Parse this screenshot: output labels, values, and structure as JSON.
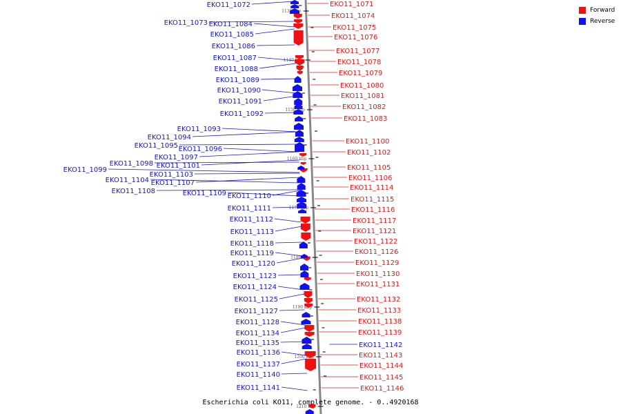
{
  "caption": "Escherichia coli KO11, complete genome. - 0..4920168",
  "legend": [
    {
      "label": "Forward",
      "color": "#ee1111"
    },
    {
      "label": "Reverse",
      "color": "#1111ee"
    }
  ],
  "colors": {
    "forward": "#ee1111",
    "reverse": "#1111ee",
    "backbone": "#888888",
    "tick": "#000000"
  },
  "ticks": [
    "1130 kbp",
    "1140 kbp",
    "1150 kbp",
    "1160 kbp",
    "1170 kbp",
    "1180 kbp",
    "1190 kbp",
    "1200 kbp",
    "1210 kbp"
  ],
  "reverse_genes": [
    "EKO11_1072",
    "EKO11_1073",
    "EKO11_1084",
    "EKO11_1085",
    "EKO11_1086",
    "EKO11_1087",
    "EKO11_1088",
    "EKO11_1089",
    "EKO11_1090",
    "EKO11_1091",
    "EKO11_1092",
    "EKO11_1093",
    "EKO11_1094",
    "EKO11_1095",
    "EKO11_1096",
    "EKO11_1097",
    "EKO11_1098",
    "EKO11_1099",
    "EKO11_1101",
    "EKO11_1103",
    "EKO11_1104",
    "EKO11_1107",
    "EKO11_1108",
    "EKO11_1109",
    "EKO11_1110",
    "EKO11_1111",
    "EKO11_1112",
    "EKO11_1113",
    "EKO11_1118",
    "EKO11_1119",
    "EKO11_1120",
    "EKO11_1123",
    "EKO11_1124",
    "EKO11_1125",
    "EKO11_1127",
    "EKO11_1128",
    "EKO11_1134",
    "EKO11_1135",
    "EKO11_1136",
    "EKO11_1137",
    "EKO11_1140",
    "EKO11_1141",
    "EKO11_1142"
  ],
  "forward_genes": [
    "EKO11_1071",
    "EKO11_1074",
    "EKO11_1075",
    "EKO11_1076",
    "EKO11_1077",
    "EKO11_1078",
    "EKO11_1079",
    "EKO11_1080",
    "EKO11_1081",
    "EKO11_1082",
    "EKO11_1083",
    "EKO11_1100",
    "EKO11_1102",
    "EKO11_1105",
    "EKO11_1106",
    "EKO11_1114",
    "EKO11_1115",
    "EKO11_1116",
    "EKO11_1117",
    "EKO11_1121",
    "EKO11_1122",
    "EKO11_1126",
    "EKO11_1129",
    "EKO11_1130",
    "EKO11_1131",
    "EKO11_1132",
    "EKO11_1133",
    "EKO11_1138",
    "EKO11_1139",
    "EKO11_1143",
    "EKO11_1144",
    "EKO11_1145",
    "EKO11_1146"
  ]
}
